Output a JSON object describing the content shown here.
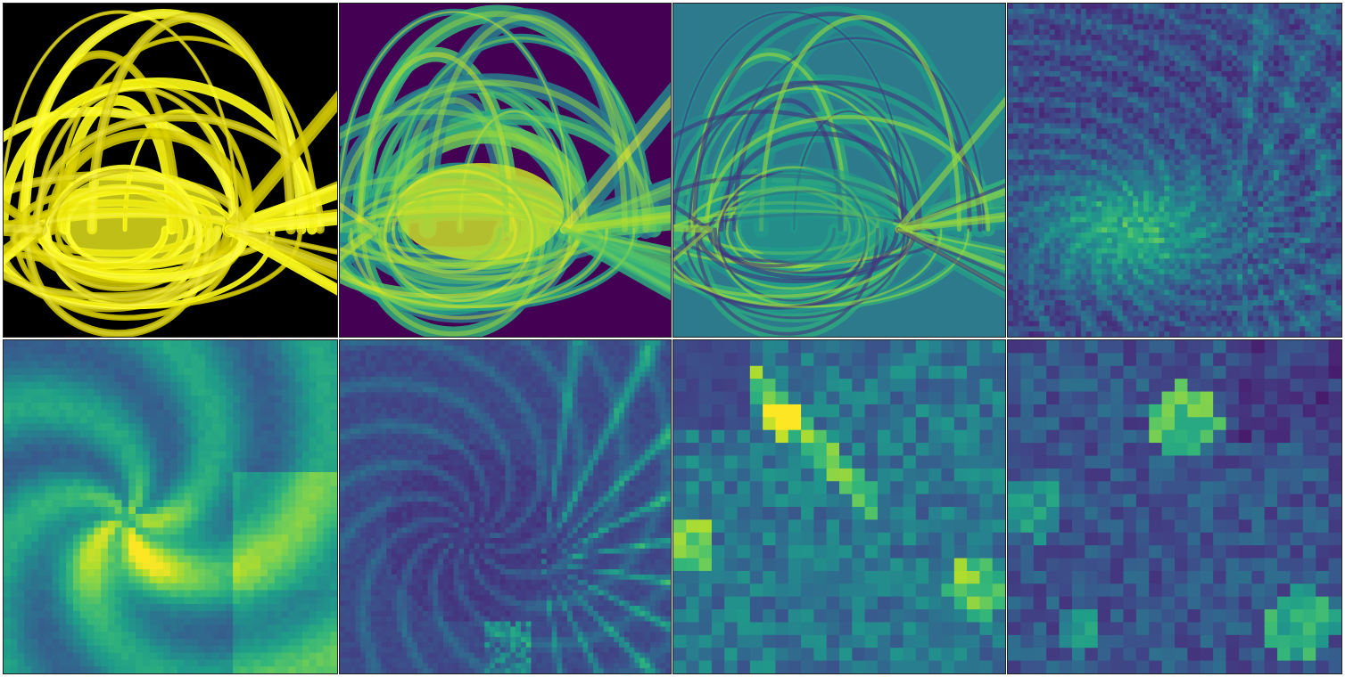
{
  "figure": {
    "rows": 2,
    "cols": 4,
    "panels": [
      {
        "id": "p1",
        "kind": "loops",
        "palette": "yellow-black",
        "background": "#000000",
        "loop_color": "#c9c000",
        "highlight_color": "#ffff20"
      },
      {
        "id": "p2",
        "kind": "viridis-smooth",
        "palette": "viridis",
        "background": "#440154"
      },
      {
        "id": "p3",
        "kind": "viridis-edge",
        "palette": "viridis",
        "background": "#2c7a8c"
      },
      {
        "id": "p4",
        "kind": "viridis-pixel",
        "palette": "viridis",
        "background": "#2c7a8c"
      },
      {
        "id": "p5",
        "kind": "viridis-blur",
        "palette": "viridis",
        "background": "#2a8f8a"
      },
      {
        "id": "p6",
        "kind": "viridis-dark",
        "palette": "viridis",
        "background": "#3b528b"
      },
      {
        "id": "p7",
        "kind": "viridis-blocks",
        "palette": "viridis",
        "background": "#3b4f8b"
      },
      {
        "id": "p8",
        "kind": "viridis-coarse",
        "palette": "viridis",
        "background": "#3a3b86"
      }
    ]
  }
}
